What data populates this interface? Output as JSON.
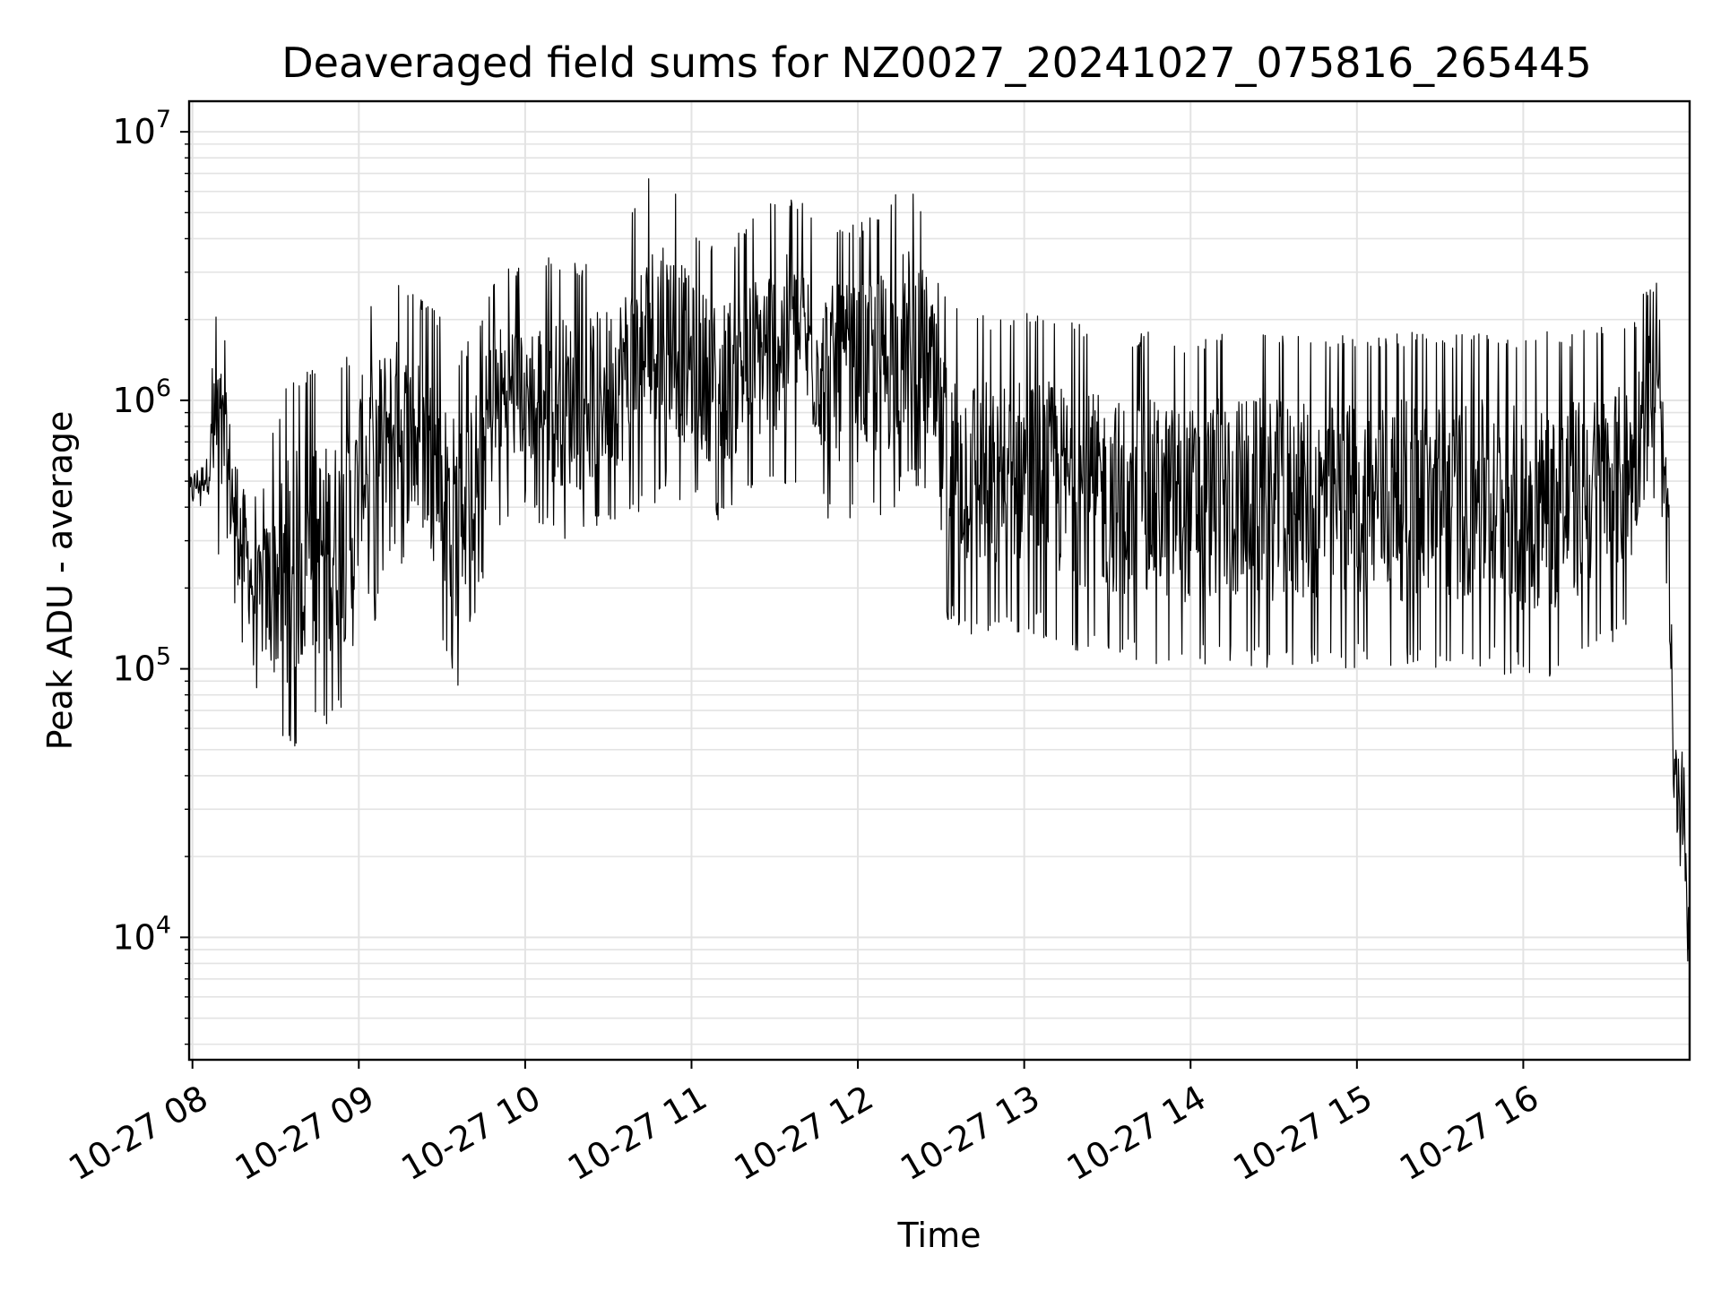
{
  "chart_data": {
    "type": "line",
    "title": "Deaveraged field sums for NZ0027_20241027_075816_265445",
    "xlabel": "Time",
    "ylabel": "Peak ADU - average",
    "yscale": "log",
    "ylim": [
      3500,
      13000000
    ],
    "xlim": [
      "2024-10-27 07:58:48",
      "2024-10-27 17:00:00"
    ],
    "grid": true,
    "x_ticks": [
      "2024-10-27 08:00",
      "2024-10-27 09:00",
      "2024-10-27 10:00",
      "2024-10-27 11:00",
      "2024-10-27 12:00",
      "2024-10-27 13:00",
      "2024-10-27 14:00",
      "2024-10-27 15:00",
      "2024-10-27 16:00"
    ],
    "x_tick_labels": [
      "10-27 08",
      "10-27 09",
      "10-27 10",
      "10-27 11",
      "10-27 12",
      "10-27 13",
      "10-27 14",
      "10-27 15",
      "10-27 16"
    ],
    "y_ticks": [
      10000,
      100000,
      1000000,
      10000000
    ],
    "y_tick_labels": [
      {
        "base": "10",
        "exp": "4"
      },
      {
        "base": "10",
        "exp": "5"
      },
      {
        "base": "10",
        "exp": "6"
      },
      {
        "base": "10",
        "exp": "7"
      }
    ],
    "line_color": "#000000",
    "grid_color": "#e3e3e3",
    "series": [
      {
        "x": [
          "2024-10-27 07:58:48",
          "2024-10-27 08:01:00",
          "2024-10-27 08:05:00",
          "2024-10-27 08:09:00",
          "2024-10-27 08:13:00",
          "2024-10-27 08:18:00",
          "2024-10-27 08:24:00",
          "2024-10-27 08:30:00",
          "2024-10-27 08:36:00",
          "2024-10-27 08:42:00",
          "2024-10-27 08:48:00",
          "2024-10-27 08:54:00",
          "2024-10-27 08:58:00",
          "2024-10-27 09:01:00",
          "2024-10-27 09:06:00",
          "2024-10-27 09:12:00",
          "2024-10-27 09:18:00",
          "2024-10-27 09:24:00",
          "2024-10-27 09:30:00",
          "2024-10-27 09:36:00",
          "2024-10-27 09:42:00",
          "2024-10-27 09:48:00",
          "2024-10-27 09:54:00",
          "2024-10-27 10:00:00",
          "2024-10-27 10:10:00",
          "2024-10-27 10:20:00",
          "2024-10-27 10:30:00",
          "2024-10-27 10:40:00",
          "2024-10-27 10:50:00",
          "2024-10-27 11:00:00",
          "2024-10-27 11:10:00",
          "2024-10-27 11:20:00",
          "2024-10-27 11:30:00",
          "2024-10-27 11:40:00",
          "2024-10-27 11:50:00",
          "2024-10-27 12:00:00",
          "2024-10-27 12:10:00",
          "2024-10-27 12:20:00",
          "2024-10-27 12:26:00",
          "2024-10-27 12:30:00",
          "2024-10-27 12:40:00",
          "2024-10-27 12:50:00",
          "2024-10-27 13:00:00",
          "2024-10-27 13:15:00",
          "2024-10-27 13:30:00",
          "2024-10-27 13:45:00",
          "2024-10-27 14:00:00",
          "2024-10-27 14:15:00",
          "2024-10-27 14:30:00",
          "2024-10-27 14:45:00",
          "2024-10-27 15:00:00",
          "2024-10-27 15:15:00",
          "2024-10-27 15:30:00",
          "2024-10-27 15:45:00",
          "2024-10-27 16:00:00",
          "2024-10-27 16:15:00",
          "2024-10-27 16:30:00",
          "2024-10-27 16:40:00",
          "2024-10-27 16:44:00",
          "2024-10-27 16:48:00",
          "2024-10-27 16:50:00",
          "2024-10-27 16:52:00",
          "2024-10-27 16:54:00",
          "2024-10-27 16:56:00",
          "2024-10-27 16:58:00",
          "2024-10-27 17:00:00"
        ],
        "low": [
          320000,
          380000,
          420000,
          250000,
          200000,
          120000,
          80000,
          50000,
          45000,
          55000,
          60000,
          70000,
          60000,
          180000,
          150000,
          300000,
          200000,
          180000,
          120000,
          80000,
          160000,
          300000,
          350000,
          400000,
          300000,
          280000,
          350000,
          350000,
          450000,
          400000,
          350000,
          400000,
          450000,
          500000,
          350000,
          350000,
          350000,
          500000,
          400000,
          150000,
          130000,
          120000,
          140000,
          120000,
          110000,
          100000,
          100000,
          100000,
          100000,
          100000,
          100000,
          100000,
          100000,
          100000,
          90000,
          90000,
          120000,
          150000,
          450000,
          400000,
          250000,
          100000,
          22000,
          18000,
          15000,
          5000
        ],
        "high": [
          600000,
          620000,
          650000,
          2600000,
          1400000,
          700000,
          400000,
          900000,
          1300000,
          1300000,
          1300000,
          1400000,
          1600000,
          2000000,
          2500000,
          2800000,
          2600000,
          2400000,
          2000000,
          1500000,
          1800000,
          2800000,
          3400000,
          3000000,
          3500000,
          3200000,
          3600000,
          5500000,
          8500000,
          4500000,
          3800000,
          4500000,
          6000000,
          5500000,
          4500000,
          4500000,
          5500000,
          6500000,
          4500000,
          2600000,
          2400000,
          2000000,
          2200000,
          2000000,
          1800000,
          1800000,
          1700000,
          1900000,
          1800000,
          1700000,
          1800000,
          1800000,
          1800000,
          1800000,
          1800000,
          1800000,
          1900000,
          2000000,
          2600000,
          2800000,
          1800000,
          800000,
          80000,
          60000,
          45000,
          30000
        ]
      }
    ]
  }
}
